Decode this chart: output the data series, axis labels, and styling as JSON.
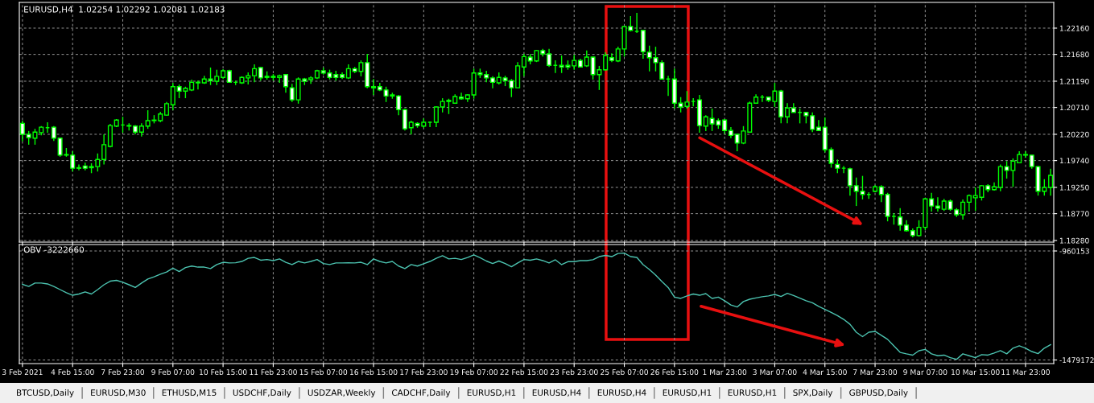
{
  "chart_data": [
    {
      "type": "candlestick",
      "title": "EURUSD,H4  1.02254 1.02292 1.02081 1.02183",
      "color": "#00ff00",
      "grid": true,
      "tick_labels": "y",
      "categories": [
        null,
        null,
        null,
        null,
        null,
        null,
        null,
        null,
        null,
        null,
        null,
        null,
        null,
        null,
        null,
        null,
        null,
        null,
        null,
        null,
        null,
        null,
        null,
        null,
        null,
        null,
        null,
        null,
        null,
        null,
        null,
        null,
        null,
        null,
        null,
        null,
        null,
        null,
        null,
        null,
        null,
        null,
        null,
        null,
        null,
        null,
        null,
        null,
        null,
        null,
        null,
        null,
        null,
        null,
        null,
        null,
        null,
        null,
        null,
        null,
        null,
        null,
        null,
        null,
        null,
        null,
        null,
        null,
        null,
        null,
        null,
        null,
        null,
        null,
        null,
        null,
        null,
        null,
        null,
        null,
        null,
        null,
        null,
        null,
        null,
        null,
        null,
        null,
        null,
        null,
        null,
        null,
        null,
        null,
        null,
        null,
        null,
        null,
        null,
        null,
        null,
        null,
        null,
        null,
        null,
        null,
        null,
        null,
        null,
        null,
        null,
        null,
        null,
        null,
        null,
        null,
        null,
        null,
        null,
        null,
        null,
        null,
        null,
        null,
        null,
        null,
        null,
        null,
        null,
        null,
        null,
        null,
        null,
        null,
        null,
        null,
        null,
        null,
        null,
        null,
        null,
        null,
        null,
        null,
        null,
        null,
        null,
        null,
        null,
        null,
        null,
        null,
        null,
        null,
        null,
        null,
        null,
        null,
        null,
        null,
        null,
        null,
        null,
        null,
        null
      ],
      "ylim": [
        1.1825,
        1.2263
      ],
      "yticks": [
        {
          "value": 1.1828,
          "label": "1.18280"
        },
        {
          "value": 1.1877,
          "label": "1.18770"
        },
        {
          "value": 1.1925,
          "label": "1.19250"
        },
        {
          "value": 1.1974,
          "label": "1.19740"
        },
        {
          "value": 1.2022,
          "label": "1.20220"
        },
        {
          "value": 1.2071,
          "label": "1.20710"
        },
        {
          "value": 1.2119,
          "label": "1.21190"
        },
        {
          "value": 1.2168,
          "label": "1.21680"
        },
        {
          "value": 1.2216,
          "label": "1.22160"
        }
      ],
      "ohlc": [
        [
          1.2042,
          1.2047,
          1.2009,
          1.2022
        ],
        [
          1.2022,
          1.2028,
          1.2003,
          1.2016
        ],
        [
          1.2015,
          1.2032,
          1.2003,
          1.2026
        ],
        [
          1.2025,
          1.2037,
          1.202,
          1.2035
        ],
        [
          1.2034,
          1.2044,
          1.2025,
          1.2034
        ],
        [
          1.2035,
          1.2037,
          1.201,
          1.2015
        ],
        [
          1.2015,
          1.2016,
          1.1981,
          1.1984
        ],
        [
          1.1985,
          1.1997,
          1.1981,
          1.1984
        ],
        [
          1.1984,
          1.1991,
          1.1954,
          1.196
        ],
        [
          1.1961,
          1.1967,
          1.1956,
          1.196
        ],
        [
          1.1964,
          1.197,
          1.1956,
          1.196
        ],
        [
          1.1963,
          1.1969,
          1.1951,
          1.1961
        ],
        [
          1.1963,
          1.1987,
          1.1954,
          1.1976
        ],
        [
          1.1976,
          1.2022,
          1.1967,
          1.2003
        ],
        [
          1.2,
          1.2041,
          1.1998,
          1.2038
        ],
        [
          1.2037,
          1.205,
          1.2035,
          1.2048
        ],
        [
          1.2039,
          1.2054,
          1.2025,
          1.2039
        ],
        [
          1.2037,
          1.2042,
          1.2029,
          1.2038
        ],
        [
          1.2037,
          1.2039,
          1.2022,
          1.2026
        ],
        [
          1.2026,
          1.2042,
          1.2018,
          1.2037
        ],
        [
          1.2037,
          1.2066,
          1.2032,
          1.2047
        ],
        [
          1.2047,
          1.2057,
          1.2042,
          1.2048
        ],
        [
          1.2047,
          1.2063,
          1.2044,
          1.2059
        ],
        [
          1.2057,
          1.2081,
          1.2056,
          1.2078
        ],
        [
          1.2076,
          1.2116,
          1.2066,
          1.2109
        ],
        [
          1.2109,
          1.2113,
          1.2088,
          1.2101
        ],
        [
          1.2101,
          1.2109,
          1.2088,
          1.2106
        ],
        [
          1.2103,
          1.2122,
          1.2101,
          1.2117
        ],
        [
          1.2116,
          1.212,
          1.2104,
          1.2117
        ],
        [
          1.2116,
          1.2129,
          1.2114,
          1.2123
        ],
        [
          1.2123,
          1.2144,
          1.2112,
          1.212
        ],
        [
          1.2119,
          1.214,
          1.2112,
          1.2128
        ],
        [
          1.2126,
          1.2141,
          1.2123,
          1.2138
        ],
        [
          1.2138,
          1.214,
          1.2116,
          1.2117
        ],
        [
          1.2117,
          1.212,
          1.2112,
          1.2117
        ],
        [
          1.2116,
          1.2128,
          1.2114,
          1.2126
        ],
        [
          1.2125,
          1.2135,
          1.2113,
          1.2129
        ],
        [
          1.2129,
          1.215,
          1.2117,
          1.2142
        ],
        [
          1.2144,
          1.2145,
          1.212,
          1.2125
        ],
        [
          1.2128,
          1.2137,
          1.2122,
          1.2126
        ],
        [
          1.2126,
          1.2132,
          1.212,
          1.2128
        ],
        [
          1.2126,
          1.2131,
          1.2116,
          1.2129
        ],
        [
          1.2131,
          1.2132,
          1.2098,
          1.2109
        ],
        [
          1.2107,
          1.2114,
          1.2081,
          1.2085
        ],
        [
          1.2085,
          1.2126,
          1.2078,
          1.2123
        ],
        [
          1.2123,
          1.2125,
          1.2112,
          1.2119
        ],
        [
          1.2122,
          1.2128,
          1.2114,
          1.2125
        ],
        [
          1.2125,
          1.214,
          1.2123,
          1.2138
        ],
        [
          1.2138,
          1.2144,
          1.2131,
          1.2134
        ],
        [
          1.2134,
          1.214,
          1.2122,
          1.2126
        ],
        [
          1.2131,
          1.2138,
          1.212,
          1.2126
        ],
        [
          1.2131,
          1.2135,
          1.2123,
          1.2126
        ],
        [
          1.2125,
          1.215,
          1.2123,
          1.2142
        ],
        [
          1.2142,
          1.2145,
          1.2134,
          1.2137
        ],
        [
          1.2137,
          1.2157,
          1.2128,
          1.2153
        ],
        [
          1.2153,
          1.2169,
          1.2106,
          1.2109
        ],
        [
          1.2109,
          1.2123,
          1.2094,
          1.2107
        ],
        [
          1.2109,
          1.2116,
          1.2101,
          1.2103
        ],
        [
          1.2103,
          1.2109,
          1.2081,
          1.2092
        ],
        [
          1.2094,
          1.2098,
          1.2087,
          1.2092
        ],
        [
          1.2092,
          1.2094,
          1.2057,
          1.2067
        ],
        [
          1.2067,
          1.2069,
          1.2029,
          1.2032
        ],
        [
          1.2034,
          1.2047,
          1.2022,
          1.2044
        ],
        [
          1.2042,
          1.2044,
          1.2034,
          1.2038
        ],
        [
          1.2037,
          1.2051,
          1.2034,
          1.2044
        ],
        [
          1.2044,
          1.2045,
          1.2035,
          1.2044
        ],
        [
          1.2044,
          1.2073,
          1.2035,
          1.2072
        ],
        [
          1.2072,
          1.2088,
          1.2062,
          1.2082
        ],
        [
          1.2082,
          1.2087,
          1.2059,
          1.2084
        ],
        [
          1.2079,
          1.2095,
          1.2079,
          1.2091
        ],
        [
          1.209,
          1.2098,
          1.2085,
          1.2087
        ],
        [
          1.2087,
          1.2095,
          1.2081,
          1.2094
        ],
        [
          1.2094,
          1.2142,
          1.2087,
          1.2134
        ],
        [
          1.2134,
          1.2142,
          1.2125,
          1.2131
        ],
        [
          1.2131,
          1.2138,
          1.2117,
          1.2125
        ],
        [
          1.2125,
          1.2128,
          1.2106,
          1.2117
        ],
        [
          1.2116,
          1.2135,
          1.2113,
          1.2126
        ],
        [
          1.2125,
          1.2129,
          1.211,
          1.212
        ],
        [
          1.212,
          1.2123,
          1.209,
          1.2107
        ],
        [
          1.2107,
          1.2154,
          1.2107,
          1.2147
        ],
        [
          1.2145,
          1.2169,
          1.2128,
          1.2164
        ],
        [
          1.2163,
          1.2169,
          1.215,
          1.2156
        ],
        [
          1.2156,
          1.2176,
          1.2154,
          1.2175
        ],
        [
          1.2175,
          1.2178,
          1.2164,
          1.2169
        ],
        [
          1.2169,
          1.2178,
          1.2145,
          1.2148
        ],
        [
          1.2148,
          1.2157,
          1.2134,
          1.2148
        ],
        [
          1.2148,
          1.2166,
          1.2134,
          1.2145
        ],
        [
          1.2148,
          1.2157,
          1.214,
          1.2145
        ],
        [
          1.2147,
          1.2167,
          1.214,
          1.2157
        ],
        [
          1.2157,
          1.216,
          1.2144,
          1.2145
        ],
        [
          1.2147,
          1.2175,
          1.2145,
          1.2163
        ],
        [
          1.2163,
          1.2164,
          1.2122,
          1.2131
        ],
        [
          1.2131,
          1.2147,
          1.2103,
          1.214
        ],
        [
          1.214,
          1.2172,
          1.2138,
          1.2166
        ],
        [
          1.2162,
          1.217,
          1.2154,
          1.2157
        ],
        [
          1.2156,
          1.2182,
          1.2154,
          1.2178
        ],
        [
          1.2178,
          1.222,
          1.2164,
          1.2219
        ],
        [
          1.2219,
          1.2238,
          1.221,
          1.2212
        ],
        [
          1.221,
          1.2244,
          1.2207,
          1.221
        ],
        [
          1.2212,
          1.2213,
          1.216,
          1.2173
        ],
        [
          1.2172,
          1.2184,
          1.2137,
          1.2162
        ],
        [
          1.2162,
          1.2182,
          1.2137,
          1.2153
        ],
        [
          1.2153,
          1.2157,
          1.2122,
          1.2123
        ],
        [
          1.2123,
          1.2129,
          1.2092,
          1.2123
        ],
        [
          1.2123,
          1.2142,
          1.2069,
          1.2079
        ],
        [
          1.2079,
          1.209,
          1.2062,
          1.2072
        ],
        [
          1.2073,
          1.2101,
          1.2069,
          1.2081
        ],
        [
          1.2082,
          1.2088,
          1.2073,
          1.2082
        ],
        [
          1.2085,
          1.2094,
          1.2025,
          1.2038
        ],
        [
          1.2037,
          1.2057,
          1.2028,
          1.2054
        ],
        [
          1.2051,
          1.2069,
          1.2028,
          1.2041
        ],
        [
          1.2047,
          1.2051,
          1.2032,
          1.2039
        ],
        [
          1.2048,
          1.205,
          1.2023,
          1.2029
        ],
        [
          1.2029,
          1.2035,
          1.2015,
          1.202
        ],
        [
          1.2022,
          1.2023,
          1.1991,
          1.2006
        ],
        [
          1.2006,
          1.2037,
          1.2004,
          1.2028
        ],
        [
          1.2026,
          1.2082,
          1.2025,
          1.2079
        ],
        [
          1.2079,
          1.2095,
          1.2078,
          1.209
        ],
        [
          1.209,
          1.2094,
          1.2081,
          1.209
        ],
        [
          1.209,
          1.2091,
          1.2081,
          1.2084
        ],
        [
          1.2082,
          1.2116,
          1.2072,
          1.2101
        ],
        [
          1.2101,
          1.2103,
          1.2042,
          1.2054
        ],
        [
          1.2054,
          1.2079,
          1.2042,
          1.207
        ],
        [
          1.207,
          1.2079,
          1.2062,
          1.2062
        ],
        [
          1.2062,
          1.2069,
          1.2042,
          1.2062
        ],
        [
          1.2062,
          1.2063,
          1.2042,
          1.2056
        ],
        [
          1.2056,
          1.2062,
          1.2026,
          1.2031
        ],
        [
          1.2035,
          1.2048,
          1.2028,
          1.2029
        ],
        [
          1.2035,
          1.2053,
          1.1989,
          1.1994
        ],
        [
          1.1994,
          1.1998,
          1.1961,
          1.1969
        ],
        [
          1.1967,
          1.1976,
          1.1951,
          1.196
        ],
        [
          1.196,
          1.1964,
          1.1951,
          1.196
        ],
        [
          1.1959,
          1.1961,
          1.191,
          1.1928
        ],
        [
          1.1928,
          1.1943,
          1.1891,
          1.1918
        ],
        [
          1.1918,
          1.1946,
          1.1903,
          1.1912
        ],
        [
          1.1912,
          1.1916,
          1.1904,
          1.1912
        ],
        [
          1.1918,
          1.1929,
          1.1916,
          1.1926
        ],
        [
          1.1926,
          1.1929,
          1.1898,
          1.1912
        ],
        [
          1.1912,
          1.1915,
          1.1863,
          1.1872
        ],
        [
          1.1872,
          1.1878,
          1.1857,
          1.1872
        ],
        [
          1.1871,
          1.1887,
          1.1846,
          1.1856
        ],
        [
          1.1856,
          1.1865,
          1.1844,
          1.1846
        ],
        [
          1.1846,
          1.185,
          1.1834,
          1.1837
        ],
        [
          1.1837,
          1.1865,
          1.1835,
          1.1852
        ],
        [
          1.1852,
          1.1906,
          1.1847,
          1.1904
        ],
        [
          1.1904,
          1.1915,
          1.1881,
          1.1891
        ],
        [
          1.1891,
          1.1907,
          1.1881,
          1.1887
        ],
        [
          1.1885,
          1.1904,
          1.1882,
          1.19
        ],
        [
          1.19,
          1.1903,
          1.1882,
          1.1885
        ],
        [
          1.1884,
          1.1887,
          1.1871,
          1.1875
        ],
        [
          1.1875,
          1.1903,
          1.1866,
          1.1898
        ],
        [
          1.1898,
          1.1912,
          1.1881,
          1.191
        ],
        [
          1.1906,
          1.1925,
          1.1882,
          1.191
        ],
        [
          1.1907,
          1.1929,
          1.1901,
          1.1928
        ],
        [
          1.1928,
          1.1931,
          1.1916,
          1.1921
        ],
        [
          1.1921,
          1.1934,
          1.1919,
          1.1926
        ],
        [
          1.1925,
          1.1967,
          1.1918,
          1.1963
        ],
        [
          1.1963,
          1.1973,
          1.1941,
          1.1956
        ],
        [
          1.1956,
          1.1978,
          1.1926,
          1.1973
        ],
        [
          1.197,
          1.1991,
          1.1969,
          1.1985
        ],
        [
          1.1985,
          1.1991,
          1.1979,
          1.1984
        ],
        [
          1.1984,
          1.1984,
          1.1959,
          1.1963
        ],
        [
          1.1963,
          1.1964,
          1.191,
          1.1918
        ],
        [
          1.1918,
          1.194,
          1.191,
          1.1925
        ],
        [
          1.1925,
          1.1959,
          1.191,
          1.1947
        ]
      ]
    },
    {
      "type": "line",
      "title": "OBV -3222660",
      "grid": true,
      "categories": [
        "3 Feb 2021",
        null,
        null,
        null,
        null,
        null,
        null,
        null,
        "4 Feb 15:00",
        null,
        null,
        null,
        null,
        null,
        null,
        null,
        "7 Feb 23:00",
        null,
        null,
        null,
        null,
        null,
        null,
        null,
        "9 Feb 07:00",
        null,
        null,
        null,
        null,
        null,
        null,
        null,
        "10 Feb 15:00",
        null,
        null,
        null,
        null,
        null,
        null,
        null,
        "11 Feb 23:00",
        null,
        null,
        null,
        null,
        null,
        null,
        null,
        "15 Feb 07:00",
        null,
        null,
        null,
        null,
        null,
        null,
        null,
        "16 Feb 15:00",
        null,
        null,
        null,
        null,
        null,
        null,
        null,
        "17 Feb 23:00",
        null,
        null,
        null,
        null,
        null,
        null,
        null,
        "19 Feb 07:00",
        null,
        null,
        null,
        null,
        null,
        null,
        null,
        "22 Feb 15:00",
        null,
        null,
        null,
        null,
        null,
        null,
        null,
        "23 Feb 23:00",
        null,
        null,
        null,
        null,
        null,
        null,
        null,
        "25 Feb 07:00",
        null,
        null,
        null,
        null,
        null,
        null,
        null,
        "26 Feb 15:00",
        null,
        null,
        null,
        null,
        null,
        null,
        null,
        "1 Mar 23:00",
        null,
        null,
        null,
        null,
        null,
        null,
        null,
        "3 Mar 07:00",
        null,
        null,
        null,
        null,
        null,
        null,
        null,
        "4 Mar 15:00",
        null,
        null,
        null,
        null,
        null,
        null,
        null,
        "7 Mar 23:00",
        null,
        null,
        null,
        null,
        null,
        null,
        null,
        "9 Mar 07:00",
        null,
        null,
        null,
        null,
        null,
        null,
        null,
        "10 Mar 15:00",
        null,
        null,
        null,
        null,
        null,
        null,
        null,
        "11 Mar 23:00",
        null,
        null,
        null,
        null
      ],
      "ylim": [
        -1496400,
        -929500
      ],
      "yticks": [
        -1479172,
        -960153
      ],
      "series": [
        {
          "color": "#4cc3b0",
          "values": [
            -1119000,
            -1129000,
            -1113000,
            -1113000,
            -1117000,
            -1129000,
            -1144000,
            -1159000,
            -1171000,
            -1165000,
            -1155000,
            -1165000,
            -1144000,
            -1121000,
            -1104000,
            -1100000,
            -1109000,
            -1121000,
            -1134000,
            -1113000,
            -1094000,
            -1083000,
            -1071000,
            -1060000,
            -1042000,
            -1058000,
            -1039000,
            -1032000,
            -1037000,
            -1037000,
            -1044000,
            -1025000,
            -1014000,
            -1017000,
            -1016000,
            -1010000,
            -995000,
            -991000,
            -1004000,
            -1001000,
            -1006000,
            -998000,
            -1014000,
            -1025000,
            -1010000,
            -1017000,
            -1010000,
            -1001000,
            -1020000,
            -1025000,
            -1017000,
            -1017000,
            -1016000,
            -1017000,
            -1014000,
            -1025000,
            -998000,
            -1010000,
            -1017000,
            -1010000,
            -1032000,
            -1044000,
            -1025000,
            -1032000,
            -1021000,
            -1010000,
            -995000,
            -983000,
            -998000,
            -995000,
            -1001000,
            -991000,
            -979000,
            -992000,
            -1008000,
            -1020000,
            -1008000,
            -1020000,
            -1035000,
            -1017000,
            -1001000,
            -1004000,
            -998000,
            -1006000,
            -1017000,
            -1002000,
            -1025000,
            -1011000,
            -1011000,
            -1006000,
            -1006000,
            -1002000,
            -987000,
            -981000,
            -987000,
            -972000,
            -970000,
            -987000,
            -991000,
            -1025000,
            -1048000,
            -1075000,
            -1106000,
            -1134000,
            -1180000,
            -1186000,
            -1174000,
            -1165000,
            -1171000,
            -1163000,
            -1186000,
            -1180000,
            -1197000,
            -1217000,
            -1227000,
            -1201000,
            -1190000,
            -1184000,
            -1178000,
            -1174000,
            -1167000,
            -1177000,
            -1162000,
            -1172000,
            -1185000,
            -1197000,
            -1207000,
            -1224000,
            -1238000,
            -1253000,
            -1268000,
            -1286000,
            -1309000,
            -1347000,
            -1368000,
            -1347000,
            -1343000,
            -1362000,
            -1381000,
            -1412000,
            -1443000,
            -1450000,
            -1456000,
            -1435000,
            -1429000,
            -1450000,
            -1459000,
            -1456000,
            -1468000,
            -1476000,
            -1450000,
            -1459000,
            -1468000,
            -1454000,
            -1456000,
            -1446000,
            -1435000,
            -1450000,
            -1423000,
            -1412000,
            -1423000,
            -1439000,
            -1449000,
            -1423000,
            -1406000
          ]
        }
      ],
      "annotations": [
        "BTCUSD,Daily",
        "EURUSD,M30",
        "ETHUSD,M15",
        "USDCHF,Daily",
        "USDZAR,Weekly",
        "CADCHF,Daily",
        "EURUSD,H1",
        "EURUSD,H4",
        "EURUSD,H4",
        "EURUSD,H1",
        "EURUSD,H1",
        "SPX,Daily",
        "GBPUSD,Daily"
      ]
    }
  ]
}
